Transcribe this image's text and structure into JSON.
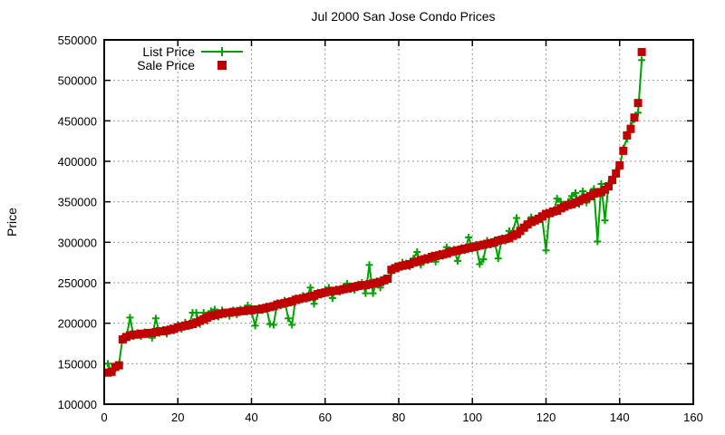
{
  "page": {
    "background": "#ffffff",
    "plot_border_color": "#000000",
    "grid_color": "#9a9a9a"
  },
  "chart_data": {
    "type": "scatter",
    "title": "Jul 2000 San Jose Condo Prices",
    "xlabel": "",
    "ylabel": "Price",
    "xlim": [
      0,
      160
    ],
    "ylim": [
      100000,
      550000
    ],
    "x_ticks": [
      0,
      20,
      40,
      60,
      80,
      100,
      120,
      140,
      160
    ],
    "y_ticks": [
      100000,
      150000,
      200000,
      250000,
      300000,
      350000,
      400000,
      450000,
      500000,
      550000
    ],
    "grid": true,
    "legend_position": "inside-top-left",
    "x_description": "condo rank ordered by sale price, x = 1..146",
    "series": [
      {
        "name": "List Price",
        "style": "linespoints",
        "marker": "plus",
        "color": "#00a000",
        "values": [
          150000,
          140000,
          144000,
          149000,
          182000,
          181000,
          207000,
          184000,
          188000,
          184000,
          189000,
          188000,
          182000,
          206000,
          188000,
          192000,
          187000,
          194000,
          191000,
          198000,
          193000,
          201000,
          196000,
          213000,
          213000,
          199000,
          213000,
          203000,
          215000,
          217000,
          208000,
          216000,
          211000,
          209000,
          216000,
          211000,
          217000,
          215000,
          222000,
          214000,
          197000,
          219000,
          216000,
          221000,
          199000,
          198000,
          225000,
          222000,
          228000,
          206000,
          198000,
          231000,
          228000,
          234000,
          230000,
          244000,
          224000,
          238000,
          235000,
          241000,
          244000,
          231000,
          242000,
          239000,
          245000,
          249000,
          242000,
          241000,
          248000,
          250000,
          237000,
          272000,
          237000,
          252000,
          244000,
          255000,
          253000,
          263000,
          270000,
          268000,
          275000,
          274000,
          270000,
          280000,
          288000,
          272000,
          281000,
          278000,
          284000,
          276000,
          286000,
          283000,
          294000,
          286000,
          291000,
          277000,
          293000,
          290000,
          306000,
          292000,
          297000,
          273000,
          279000,
          302000,
          297000,
          302000,
          280000,
          305000,
          302000,
          314000,
          314000,
          330000,
          310000,
          320000,
          320000,
          331000,
          325000,
          331000,
          328000,
          290000,
          338000,
          336000,
          354000,
          350000,
          342000,
          350000,
          357000,
          361000,
          347000,
          363000,
          349000,
          361000,
          366000,
          301000,
          372000,
          327000,
          373000,
          375000,
          388000,
          393000,
          416000,
          428000,
          444000,
          452000,
          460000,
          525000
        ]
      },
      {
        "name": "Sale Price",
        "style": "points",
        "marker": "filled-square",
        "color": "#c00000",
        "values": [
          139000,
          140000,
          146000,
          148000,
          180000,
          183000,
          185000,
          186000,
          186000,
          187000,
          187000,
          188000,
          188000,
          189000,
          190000,
          190000,
          191000,
          192000,
          193000,
          195000,
          196000,
          197000,
          198000,
          199000,
          201000,
          203000,
          205000,
          207000,
          209000,
          210000,
          211000,
          212000,
          213000,
          213000,
          214000,
          214000,
          215000,
          215000,
          216000,
          216000,
          217000,
          217000,
          218000,
          219000,
          220000,
          221000,
          223000,
          224000,
          225000,
          226000,
          227000,
          229000,
          230000,
          231000,
          232000,
          233000,
          234000,
          236000,
          237000,
          238000,
          239000,
          240000,
          240000,
          241000,
          242000,
          243000,
          244000,
          245000,
          246000,
          247000,
          247000,
          248000,
          249000,
          250000,
          251000,
          253000,
          255000,
          266000,
          268000,
          270000,
          271000,
          272000,
          273000,
          275000,
          276000,
          278000,
          279000,
          280000,
          282000,
          283000,
          284000,
          285000,
          286000,
          288000,
          289000,
          290000,
          291000,
          292000,
          293000,
          294000,
          295000,
          296000,
          297000,
          298000,
          299000,
          300000,
          302000,
          303000,
          304000,
          305000,
          308000,
          310000,
          314000,
          318000,
          322000,
          325000,
          327000,
          329000,
          332000,
          335000,
          336000,
          338000,
          339000,
          342000,
          344000,
          346000,
          347000,
          349000,
          351000,
          353000,
          355000,
          357000,
          360000,
          361000,
          362000,
          365000,
          369000,
          377000,
          385000,
          395000,
          413000,
          432000,
          440000,
          454000,
          472000,
          535000
        ]
      }
    ]
  }
}
